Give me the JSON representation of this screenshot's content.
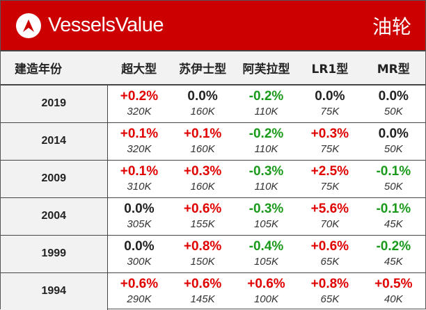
{
  "header": {
    "brand": "VesselsValue",
    "category": "油轮",
    "logo_icon": "vesselsvalue-logo-icon",
    "accent_color": "#cc0000"
  },
  "table": {
    "columns": [
      "建造年份",
      "超大型",
      "苏伊士型",
      "阿芙拉型",
      "LR1型",
      "MR型"
    ],
    "rows": [
      {
        "year": "2019",
        "cells": [
          {
            "change": "+0.2%",
            "value": "320K",
            "trend": "pos"
          },
          {
            "change": "0.0%",
            "value": "160K",
            "trend": "neu"
          },
          {
            "change": "-0.2%",
            "value": "110K",
            "trend": "neg"
          },
          {
            "change": "0.0%",
            "value": "75K",
            "trend": "neu"
          },
          {
            "change": "0.0%",
            "value": "50K",
            "trend": "neu"
          }
        ]
      },
      {
        "year": "2014",
        "cells": [
          {
            "change": "+0.1%",
            "value": "320K",
            "trend": "pos"
          },
          {
            "change": "+0.1%",
            "value": "160K",
            "trend": "pos"
          },
          {
            "change": "-0.2%",
            "value": "110K",
            "trend": "neg"
          },
          {
            "change": "+0.3%",
            "value": "75K",
            "trend": "pos"
          },
          {
            "change": "0.0%",
            "value": "50K",
            "trend": "neu"
          }
        ]
      },
      {
        "year": "2009",
        "cells": [
          {
            "change": "+0.1%",
            "value": "310K",
            "trend": "pos"
          },
          {
            "change": "+0.3%",
            "value": "160K",
            "trend": "pos"
          },
          {
            "change": "-0.3%",
            "value": "110K",
            "trend": "neg"
          },
          {
            "change": "+2.5%",
            "value": "75K",
            "trend": "pos"
          },
          {
            "change": "-0.1%",
            "value": "50K",
            "trend": "neg"
          }
        ]
      },
      {
        "year": "2004",
        "cells": [
          {
            "change": "0.0%",
            "value": "305K",
            "trend": "neu"
          },
          {
            "change": "+0.6%",
            "value": "155K",
            "trend": "pos"
          },
          {
            "change": "-0.3%",
            "value": "105K",
            "trend": "neg"
          },
          {
            "change": "+5.6%",
            "value": "70K",
            "trend": "pos"
          },
          {
            "change": "-0.1%",
            "value": "45K",
            "trend": "neg"
          }
        ]
      },
      {
        "year": "1999",
        "cells": [
          {
            "change": "0.0%",
            "value": "300K",
            "trend": "neu"
          },
          {
            "change": "+0.8%",
            "value": "150K",
            "trend": "pos"
          },
          {
            "change": "-0.4%",
            "value": "105K",
            "trend": "neg"
          },
          {
            "change": "+0.6%",
            "value": "65K",
            "trend": "pos"
          },
          {
            "change": "-0.2%",
            "value": "45K",
            "trend": "neg"
          }
        ]
      },
      {
        "year": "1994",
        "cells": [
          {
            "change": "+0.6%",
            "value": "290K",
            "trend": "pos"
          },
          {
            "change": "+0.6%",
            "value": "145K",
            "trend": "pos"
          },
          {
            "change": "+0.6%",
            "value": "100K",
            "trend": "pos"
          },
          {
            "change": "+0.8%",
            "value": "65K",
            "trend": "pos"
          },
          {
            "change": "+0.5%",
            "value": "40K",
            "trend": "pos"
          }
        ]
      }
    ]
  }
}
